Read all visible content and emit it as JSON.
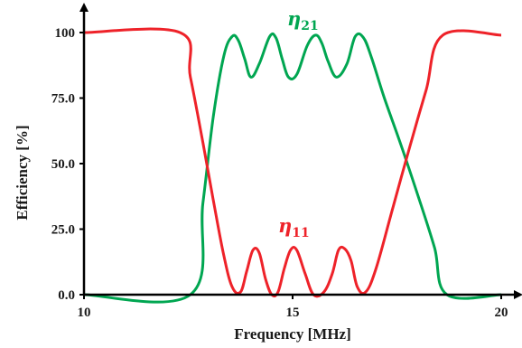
{
  "chart_data": {
    "type": "line",
    "title": "",
    "xlabel": "Frequency [MHz]",
    "ylabel": "Efficiency [%]",
    "xlim": [
      10,
      20
    ],
    "ylim": [
      0,
      100
    ],
    "x_ticks": [
      10,
      15,
      20
    ],
    "x_tick_labels": [
      "10",
      "15",
      "20"
    ],
    "y_ticks": [
      0,
      25,
      50,
      75,
      100
    ],
    "y_tick_labels": [
      "0.0",
      "25.0",
      "50.0",
      "75.0",
      "100"
    ],
    "grid": false,
    "series": [
      {
        "name": "η21",
        "label_main": "η",
        "label_sub": "21",
        "color": "#00a651",
        "x": [
          10.0,
          12.55,
          12.85,
          13.1,
          13.35,
          13.55,
          13.7,
          13.85,
          14.0,
          14.2,
          14.45,
          14.6,
          14.75,
          14.9,
          15.1,
          15.35,
          15.55,
          15.7,
          15.85,
          16.05,
          16.3,
          16.5,
          16.7,
          16.9,
          17.2,
          17.6,
          18.0,
          18.4,
          18.7,
          20.0
        ],
        "y": [
          0,
          0,
          35,
          68,
          91,
          98.5,
          97,
          90,
          83,
          88,
          98.5,
          98,
          90,
          83,
          84,
          95,
          99,
          96,
          89,
          83,
          88,
          98.5,
          98,
          90,
          75,
          57,
          38,
          18,
          0,
          0
        ]
      },
      {
        "name": "η11",
        "label_main": "η",
        "label_sub": "11",
        "color": "#ee2229",
        "x": [
          10.0,
          12.3,
          12.55,
          12.85,
          13.1,
          13.35,
          13.55,
          13.75,
          13.9,
          14.05,
          14.2,
          14.35,
          14.5,
          14.65,
          14.8,
          14.95,
          15.1,
          15.3,
          15.5,
          15.75,
          15.95,
          16.1,
          16.25,
          16.4,
          16.55,
          16.75,
          17.0,
          17.4,
          17.8,
          18.2,
          18.6,
          20.0
        ],
        "y": [
          100,
          100,
          83,
          58,
          36,
          15,
          3,
          1,
          9,
          17,
          16,
          6,
          0,
          1,
          10,
          17,
          17,
          8,
          0,
          1,
          8,
          17,
          17.5,
          13,
          3,
          1,
          10,
          33,
          56,
          78,
          99,
          99
        ]
      }
    ]
  }
}
